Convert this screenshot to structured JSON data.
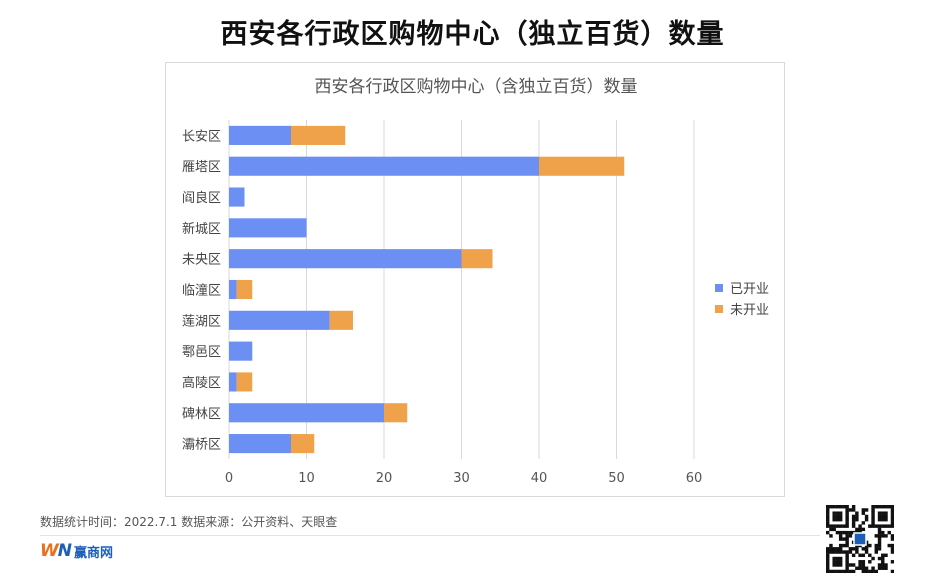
{
  "page": {
    "title": "西安各行政区购物中心（独立百货）数量",
    "source_note": "数据统计时间：2022.7.1  数据来源：公开资料、天眼查",
    "logo_text": "赢商网"
  },
  "chart_data": {
    "type": "bar",
    "orientation": "horizontal",
    "stacked": true,
    "title": "西安各行政区购物中心（含独立百货）数量",
    "categories": [
      "长安区",
      "雁塔区",
      "阎良区",
      "新城区",
      "未央区",
      "临潼区",
      "莲湖区",
      "鄠邑区",
      "高陵区",
      "碑林区",
      "灞桥区"
    ],
    "series": [
      {
        "name": "已开业",
        "color": "#6b8ff2",
        "values": [
          8,
          40,
          2,
          10,
          30,
          1,
          13,
          3,
          1,
          20,
          8
        ]
      },
      {
        "name": "未开业",
        "color": "#f0a24a",
        "values": [
          7,
          11,
          0,
          0,
          4,
          2,
          3,
          0,
          2,
          3,
          3
        ]
      }
    ],
    "xlim": [
      0,
      60
    ],
    "xticks": [
      "0",
      "10",
      "20",
      "30",
      "40",
      "50",
      "60"
    ],
    "xlabel": "",
    "ylabel": "",
    "grid": true,
    "legend_position": "right"
  }
}
